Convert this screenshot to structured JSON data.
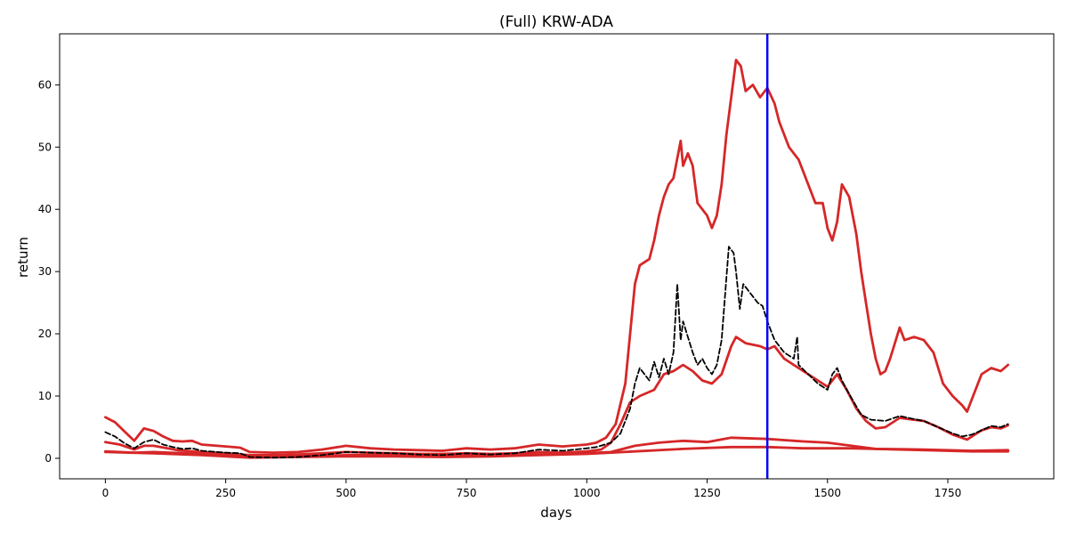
{
  "chart_data": {
    "type": "line",
    "title": "(Full) KRW-ADA",
    "xlabel": "days",
    "ylabel": "return",
    "xlim": [
      -95,
      1970
    ],
    "ylim": [
      -3.3,
      68.2
    ],
    "xticks": [
      0,
      250,
      500,
      750,
      1000,
      1250,
      1500,
      1750
    ],
    "yticks": [
      0,
      10,
      20,
      30,
      40,
      50,
      60
    ],
    "grid": false,
    "vline": {
      "x": 1375,
      "color": "#0000ff"
    },
    "series": [
      {
        "color": "#000000",
        "style": "dashed",
        "points": [
          [
            0,
            4.2
          ],
          [
            20,
            3.5
          ],
          [
            40,
            2.4
          ],
          [
            60,
            1.6
          ],
          [
            80,
            2.6
          ],
          [
            100,
            3.0
          ],
          [
            120,
            2.2
          ],
          [
            140,
            1.8
          ],
          [
            160,
            1.5
          ],
          [
            180,
            1.6
          ],
          [
            200,
            1.2
          ],
          [
            250,
            0.9
          ],
          [
            280,
            0.8
          ],
          [
            300,
            0.2
          ],
          [
            350,
            0.1
          ],
          [
            400,
            0.2
          ],
          [
            450,
            0.5
          ],
          [
            500,
            1.0
          ],
          [
            550,
            0.9
          ],
          [
            600,
            0.8
          ],
          [
            650,
            0.6
          ],
          [
            700,
            0.5
          ],
          [
            750,
            0.8
          ],
          [
            800,
            0.6
          ],
          [
            850,
            0.8
          ],
          [
            900,
            1.4
          ],
          [
            950,
            1.2
          ],
          [
            1000,
            1.6
          ],
          [
            1020,
            1.8
          ],
          [
            1050,
            2.5
          ],
          [
            1070,
            4.0
          ],
          [
            1090,
            8.0
          ],
          [
            1100,
            12.0
          ],
          [
            1110,
            14.5
          ],
          [
            1120,
            13.5
          ],
          [
            1130,
            12.5
          ],
          [
            1140,
            15.5
          ],
          [
            1150,
            13.0
          ],
          [
            1160,
            16.0
          ],
          [
            1170,
            13.5
          ],
          [
            1180,
            17.0
          ],
          [
            1188,
            28.0
          ],
          [
            1195,
            19.0
          ],
          [
            1200,
            22.0
          ],
          [
            1210,
            19.5
          ],
          [
            1220,
            17.0
          ],
          [
            1230,
            15.0
          ],
          [
            1240,
            16.0
          ],
          [
            1250,
            14.5
          ],
          [
            1260,
            13.5
          ],
          [
            1270,
            15.0
          ],
          [
            1280,
            19.0
          ],
          [
            1290,
            29.0
          ],
          [
            1295,
            34.0
          ],
          [
            1305,
            33.0
          ],
          [
            1310,
            30.0
          ],
          [
            1318,
            24.0
          ],
          [
            1325,
            28.0
          ],
          [
            1335,
            27.0
          ],
          [
            1345,
            26.0
          ],
          [
            1355,
            25.0
          ],
          [
            1365,
            24.5
          ],
          [
            1375,
            22.0
          ],
          [
            1380,
            21.0
          ],
          [
            1390,
            19.0
          ],
          [
            1400,
            18.0
          ],
          [
            1410,
            17.0
          ],
          [
            1420,
            16.5
          ],
          [
            1430,
            16.0
          ],
          [
            1437,
            19.5
          ],
          [
            1440,
            15.0
          ],
          [
            1460,
            13.5
          ],
          [
            1480,
            12.0
          ],
          [
            1500,
            11.0
          ],
          [
            1510,
            13.5
          ],
          [
            1520,
            14.5
          ],
          [
            1530,
            12.5
          ],
          [
            1540,
            11.0
          ],
          [
            1555,
            9.0
          ],
          [
            1570,
            7.0
          ],
          [
            1590,
            6.2
          ],
          [
            1620,
            6.0
          ],
          [
            1650,
            6.8
          ],
          [
            1680,
            6.3
          ],
          [
            1700,
            6.0
          ],
          [
            1730,
            5.0
          ],
          [
            1760,
            4.0
          ],
          [
            1780,
            3.5
          ],
          [
            1800,
            3.8
          ],
          [
            1820,
            4.5
          ],
          [
            1840,
            5.2
          ],
          [
            1860,
            5.0
          ],
          [
            1875,
            5.5
          ]
        ]
      },
      {
        "color": "#d62728",
        "style": "solid",
        "width": 2.8,
        "points": [
          [
            0,
            6.6
          ],
          [
            20,
            5.8
          ],
          [
            40,
            4.3
          ],
          [
            60,
            2.8
          ],
          [
            80,
            4.8
          ],
          [
            100,
            4.4
          ],
          [
            120,
            3.5
          ],
          [
            140,
            2.8
          ],
          [
            160,
            2.7
          ],
          [
            180,
            2.8
          ],
          [
            200,
            2.2
          ],
          [
            250,
            1.9
          ],
          [
            280,
            1.7
          ],
          [
            300,
            1.0
          ],
          [
            350,
            0.9
          ],
          [
            400,
            1.0
          ],
          [
            450,
            1.4
          ],
          [
            500,
            2.0
          ],
          [
            550,
            1.6
          ],
          [
            600,
            1.4
          ],
          [
            650,
            1.3
          ],
          [
            700,
            1.2
          ],
          [
            750,
            1.6
          ],
          [
            800,
            1.4
          ],
          [
            850,
            1.6
          ],
          [
            900,
            2.2
          ],
          [
            950,
            1.9
          ],
          [
            1000,
            2.2
          ],
          [
            1020,
            2.5
          ],
          [
            1040,
            3.3
          ],
          [
            1060,
            5.5
          ],
          [
            1080,
            12.0
          ],
          [
            1090,
            20.0
          ],
          [
            1100,
            28.0
          ],
          [
            1110,
            31.0
          ],
          [
            1130,
            32.0
          ],
          [
            1140,
            35.0
          ],
          [
            1150,
            39.0
          ],
          [
            1160,
            42.0
          ],
          [
            1170,
            44.0
          ],
          [
            1180,
            45.0
          ],
          [
            1190,
            49.0
          ],
          [
            1195,
            51.0
          ],
          [
            1200,
            47.0
          ],
          [
            1210,
            49.0
          ],
          [
            1220,
            47.0
          ],
          [
            1230,
            41.0
          ],
          [
            1240,
            40.0
          ],
          [
            1250,
            39.0
          ],
          [
            1260,
            37.0
          ],
          [
            1270,
            39.0
          ],
          [
            1280,
            44.0
          ],
          [
            1290,
            52.0
          ],
          [
            1300,
            58.0
          ],
          [
            1310,
            64.0
          ],
          [
            1320,
            63.0
          ],
          [
            1330,
            59.0
          ],
          [
            1345,
            60.0
          ],
          [
            1360,
            58.0
          ],
          [
            1375,
            59.5
          ],
          [
            1390,
            57.0
          ],
          [
            1400,
            54.0
          ],
          [
            1420,
            50.0
          ],
          [
            1440,
            48.0
          ],
          [
            1460,
            44.0
          ],
          [
            1475,
            41.0
          ],
          [
            1490,
            41.0
          ],
          [
            1500,
            37.0
          ],
          [
            1510,
            35.0
          ],
          [
            1520,
            38.0
          ],
          [
            1530,
            44.0
          ],
          [
            1545,
            42.0
          ],
          [
            1560,
            36.0
          ],
          [
            1570,
            30.0
          ],
          [
            1580,
            25.0
          ],
          [
            1590,
            20.0
          ],
          [
            1600,
            16.0
          ],
          [
            1610,
            13.5
          ],
          [
            1620,
            14.0
          ],
          [
            1630,
            16.0
          ],
          [
            1650,
            21.0
          ],
          [
            1660,
            19.0
          ],
          [
            1680,
            19.5
          ],
          [
            1700,
            19.0
          ],
          [
            1720,
            17.0
          ],
          [
            1740,
            12.0
          ],
          [
            1760,
            10.0
          ],
          [
            1780,
            8.5
          ],
          [
            1790,
            7.5
          ],
          [
            1800,
            9.5
          ],
          [
            1820,
            13.5
          ],
          [
            1840,
            14.5
          ],
          [
            1860,
            14.0
          ],
          [
            1875,
            15.0
          ]
        ]
      },
      {
        "color": "#d62728",
        "style": "solid",
        "width": 2.8,
        "points": [
          [
            0,
            2.6
          ],
          [
            30,
            2.2
          ],
          [
            60,
            1.4
          ],
          [
            80,
            2.0
          ],
          [
            100,
            2.0
          ],
          [
            150,
            1.3
          ],
          [
            200,
            1.0
          ],
          [
            250,
            0.8
          ],
          [
            300,
            0.5
          ],
          [
            350,
            0.5
          ],
          [
            400,
            0.6
          ],
          [
            450,
            0.8
          ],
          [
            500,
            1.0
          ],
          [
            550,
            0.9
          ],
          [
            600,
            0.8
          ],
          [
            650,
            0.7
          ],
          [
            700,
            0.7
          ],
          [
            750,
            0.8
          ],
          [
            800,
            0.7
          ],
          [
            850,
            0.8
          ],
          [
            900,
            1.0
          ],
          [
            950,
            0.9
          ],
          [
            1000,
            1.1
          ],
          [
            1030,
            1.4
          ],
          [
            1050,
            2.5
          ],
          [
            1070,
            5.5
          ],
          [
            1090,
            9.0
          ],
          [
            1110,
            10.0
          ],
          [
            1140,
            11.0
          ],
          [
            1160,
            13.5
          ],
          [
            1180,
            14.0
          ],
          [
            1200,
            15.0
          ],
          [
            1220,
            14.0
          ],
          [
            1240,
            12.5
          ],
          [
            1260,
            12.0
          ],
          [
            1280,
            13.5
          ],
          [
            1300,
            18.0
          ],
          [
            1310,
            19.5
          ],
          [
            1330,
            18.5
          ],
          [
            1360,
            18.0
          ],
          [
            1375,
            17.5
          ],
          [
            1390,
            18.0
          ],
          [
            1410,
            16.0
          ],
          [
            1430,
            15.0
          ],
          [
            1460,
            13.5
          ],
          [
            1480,
            12.5
          ],
          [
            1500,
            11.5
          ],
          [
            1520,
            13.5
          ],
          [
            1540,
            11.0
          ],
          [
            1560,
            8.0
          ],
          [
            1580,
            6.0
          ],
          [
            1600,
            4.8
          ],
          [
            1620,
            5.0
          ],
          [
            1650,
            6.5
          ],
          [
            1680,
            6.2
          ],
          [
            1700,
            6.0
          ],
          [
            1730,
            5.0
          ],
          [
            1760,
            3.8
          ],
          [
            1790,
            3.0
          ],
          [
            1800,
            3.5
          ],
          [
            1820,
            4.5
          ],
          [
            1840,
            5.0
          ],
          [
            1860,
            4.8
          ],
          [
            1875,
            5.3
          ]
        ]
      },
      {
        "color": "#d62728",
        "style": "solid",
        "width": 2.8,
        "points": [
          [
            0,
            1.1
          ],
          [
            60,
            0.9
          ],
          [
            100,
            1.0
          ],
          [
            200,
            0.7
          ],
          [
            300,
            0.3
          ],
          [
            400,
            0.3
          ],
          [
            500,
            0.5
          ],
          [
            600,
            0.5
          ],
          [
            700,
            0.4
          ],
          [
            800,
            0.5
          ],
          [
            900,
            0.6
          ],
          [
            1000,
            0.8
          ],
          [
            1050,
            1.0
          ],
          [
            1100,
            2.0
          ],
          [
            1150,
            2.5
          ],
          [
            1200,
            2.8
          ],
          [
            1250,
            2.6
          ],
          [
            1300,
            3.3
          ],
          [
            1375,
            3.1
          ],
          [
            1450,
            2.7
          ],
          [
            1500,
            2.5
          ],
          [
            1550,
            2.0
          ],
          [
            1600,
            1.5
          ],
          [
            1700,
            1.4
          ],
          [
            1800,
            1.2
          ],
          [
            1875,
            1.3
          ]
        ]
      },
      {
        "color": "#d62728",
        "style": "solid",
        "width": 2.8,
        "points": [
          [
            0,
            1.0
          ],
          [
            100,
            0.8
          ],
          [
            200,
            0.5
          ],
          [
            300,
            0.1
          ],
          [
            400,
            0.2
          ],
          [
            500,
            0.3
          ],
          [
            600,
            0.3
          ],
          [
            700,
            0.2
          ],
          [
            800,
            0.3
          ],
          [
            900,
            0.5
          ],
          [
            1000,
            0.7
          ],
          [
            1100,
            1.1
          ],
          [
            1200,
            1.5
          ],
          [
            1300,
            1.8
          ],
          [
            1375,
            1.8
          ],
          [
            1450,
            1.6
          ],
          [
            1550,
            1.6
          ],
          [
            1650,
            1.4
          ],
          [
            1750,
            1.2
          ],
          [
            1800,
            1.1
          ],
          [
            1875,
            1.1
          ]
        ]
      }
    ]
  }
}
